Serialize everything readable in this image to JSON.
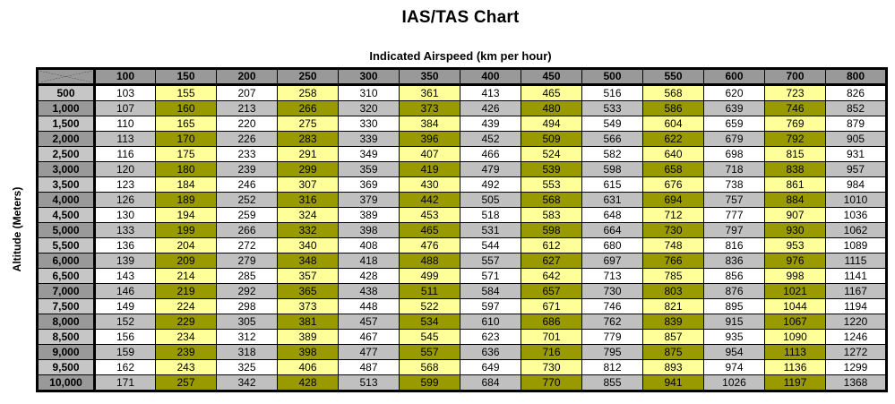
{
  "page": {
    "title": "IAS/TAS Chart",
    "x_axis_label": "Indicated Airspeed (km per hour)",
    "y_axis_label": "Altitude (Meters)"
  },
  "colors": {
    "header_bg": "#999999",
    "row_header_light": "#c6c6c6",
    "row_header_dark": "#999999",
    "row_light_bg": "#ffffff",
    "row_dark_bg": "#c0c0c0",
    "highlight_light": "#ffff99",
    "highlight_dark": "#999900",
    "border": "#000000"
  },
  "chart_data": {
    "type": "table",
    "title": "IAS/TAS Chart",
    "xlabel": "Indicated Airspeed (km per hour)",
    "ylabel": "Altitude (Meters)",
    "legend_position": "none",
    "grid": true,
    "columns": [
      "100",
      "150",
      "200",
      "250",
      "300",
      "350",
      "400",
      "450",
      "500",
      "550",
      "600",
      "700",
      "800"
    ],
    "highlighted_columns": [
      "150",
      "250",
      "350",
      "450",
      "550",
      "700"
    ],
    "rows": [
      {
        "label": "500",
        "values": [
          103,
          155,
          207,
          258,
          310,
          361,
          413,
          465,
          516,
          568,
          620,
          723,
          826
        ]
      },
      {
        "label": "1,000",
        "values": [
          107,
          160,
          213,
          266,
          320,
          373,
          426,
          480,
          533,
          586,
          639,
          746,
          852
        ]
      },
      {
        "label": "1,500",
        "values": [
          110,
          165,
          220,
          275,
          330,
          384,
          439,
          494,
          549,
          604,
          659,
          769,
          879
        ]
      },
      {
        "label": "2,000",
        "values": [
          113,
          170,
          226,
          283,
          339,
          396,
          452,
          509,
          566,
          622,
          679,
          792,
          905
        ]
      },
      {
        "label": "2,500",
        "values": [
          116,
          175,
          233,
          291,
          349,
          407,
          466,
          524,
          582,
          640,
          698,
          815,
          931
        ]
      },
      {
        "label": "3,000",
        "values": [
          120,
          180,
          239,
          299,
          359,
          419,
          479,
          539,
          598,
          658,
          718,
          838,
          957
        ]
      },
      {
        "label": "3,500",
        "values": [
          123,
          184,
          246,
          307,
          369,
          430,
          492,
          553,
          615,
          676,
          738,
          861,
          984
        ]
      },
      {
        "label": "4,000",
        "values": [
          126,
          189,
          252,
          316,
          379,
          442,
          505,
          568,
          631,
          694,
          757,
          884,
          1010
        ]
      },
      {
        "label": "4,500",
        "values": [
          130,
          194,
          259,
          324,
          389,
          453,
          518,
          583,
          648,
          712,
          777,
          907,
          1036
        ]
      },
      {
        "label": "5,000",
        "values": [
          133,
          199,
          266,
          332,
          398,
          465,
          531,
          598,
          664,
          730,
          797,
          930,
          1062
        ]
      },
      {
        "label": "5,500",
        "values": [
          136,
          204,
          272,
          340,
          408,
          476,
          544,
          612,
          680,
          748,
          816,
          953,
          1089
        ]
      },
      {
        "label": "6,000",
        "values": [
          139,
          209,
          279,
          348,
          418,
          488,
          557,
          627,
          697,
          766,
          836,
          976,
          1115
        ]
      },
      {
        "label": "6,500",
        "values": [
          143,
          214,
          285,
          357,
          428,
          499,
          571,
          642,
          713,
          785,
          856,
          998,
          1141
        ]
      },
      {
        "label": "7,000",
        "values": [
          146,
          219,
          292,
          365,
          438,
          511,
          584,
          657,
          730,
          803,
          876,
          1021,
          1167
        ]
      },
      {
        "label": "7,500",
        "values": [
          149,
          224,
          298,
          373,
          448,
          522,
          597,
          671,
          746,
          821,
          895,
          1044,
          1194
        ]
      },
      {
        "label": "8,000",
        "values": [
          152,
          229,
          305,
          381,
          457,
          534,
          610,
          686,
          762,
          839,
          915,
          1067,
          1220
        ]
      },
      {
        "label": "8,500",
        "values": [
          156,
          234,
          312,
          389,
          467,
          545,
          623,
          701,
          779,
          857,
          935,
          1090,
          1246
        ]
      },
      {
        "label": "9,000",
        "values": [
          159,
          239,
          318,
          398,
          477,
          557,
          636,
          716,
          795,
          875,
          954,
          1113,
          1272
        ]
      },
      {
        "label": "9,500",
        "values": [
          162,
          243,
          325,
          406,
          487,
          568,
          649,
          730,
          812,
          893,
          974,
          1136,
          1299
        ]
      },
      {
        "label": "10,000",
        "values": [
          171,
          257,
          342,
          428,
          513,
          599,
          684,
          770,
          855,
          941,
          1026,
          1197,
          1368
        ]
      }
    ]
  }
}
